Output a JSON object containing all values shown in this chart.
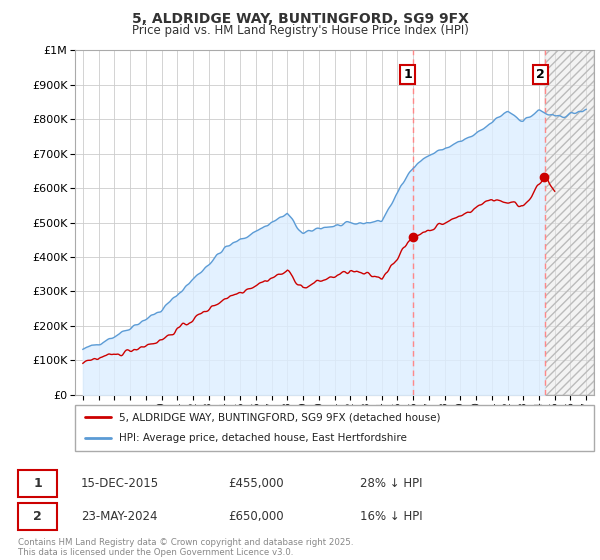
{
  "title": "5, ALDRIDGE WAY, BUNTINGFORD, SG9 9FX",
  "subtitle": "Price paid vs. HM Land Registry's House Price Index (HPI)",
  "hpi_label": "HPI: Average price, detached house, East Hertfordshire",
  "price_label": "5, ALDRIDGE WAY, BUNTINGFORD, SG9 9FX (detached house)",
  "hpi_color": "#5b9bd5",
  "price_color": "#cc0000",
  "vline_color": "#ff8888",
  "marker1_date_x": 2015.96,
  "marker2_date_x": 2024.39,
  "sale1_price": 455000,
  "sale2_price": 650000,
  "annotation1": "1",
  "annotation2": "2",
  "table_row1": [
    "1",
    "15-DEC-2015",
    "£455,000",
    "28% ↓ HPI"
  ],
  "table_row2": [
    "2",
    "23-MAY-2024",
    "£650,000",
    "16% ↓ HPI"
  ],
  "copyright_text": "Contains HM Land Registry data © Crown copyright and database right 2025.\nThis data is licensed under the Open Government Licence v3.0.",
  "ylim": [
    0,
    1000000
  ],
  "xlim": [
    1994.5,
    2027.5
  ],
  "background_color": "#ffffff",
  "plot_bg_color": "#ffffff",
  "grid_color": "#cccccc",
  "hpi_fill_color": "#ddeeff",
  "hatch_fill_color": "#e8e8e8"
}
